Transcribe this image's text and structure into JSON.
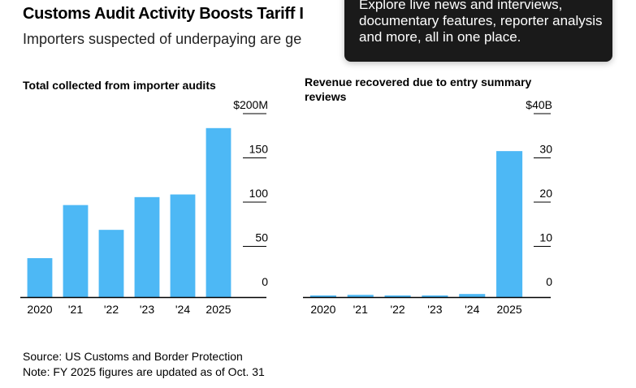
{
  "header": {
    "title": "Customs Audit Activity Boosts Tariff I",
    "subtitle": "Importers suspected of underpaying are ge"
  },
  "tooltip": {
    "text": "Explore live news and interviews, documentary features, reporter analysis and more, all in one place."
  },
  "colors": {
    "bar": "#4db8f5",
    "axis": "#000000",
    "tooltip_bg": "#1a1a1a"
  },
  "chart_data": [
    {
      "type": "bar",
      "title": "Total collected from importer audits",
      "categories": [
        "2020",
        "'21",
        "'22",
        "'23",
        "'24",
        "2025"
      ],
      "values": [
        44,
        104,
        76,
        113,
        116,
        191
      ],
      "yticks": [
        "$200M",
        "150",
        "100",
        "50",
        "0"
      ],
      "ylim": [
        0,
        200
      ],
      "xlabel": "",
      "ylabel": "",
      "grid": false
    },
    {
      "type": "bar",
      "title": "Revenue recovered due to entry summary reviews",
      "categories": [
        "2020",
        "'21",
        "'22",
        "'23",
        "'24",
        "2025"
      ],
      "values": [
        0.3,
        0.5,
        0.2,
        0.2,
        0.7,
        33
      ],
      "yticks": [
        "$40B",
        "30",
        "20",
        "10",
        "0"
      ],
      "ylim": [
        0,
        40
      ],
      "xlabel": "",
      "ylabel": "",
      "grid": false
    }
  ],
  "footer": {
    "source": "Source: US Customs and Border Protection",
    "note": "Note: FY 2025 figures are updated as of Oct. 31"
  }
}
